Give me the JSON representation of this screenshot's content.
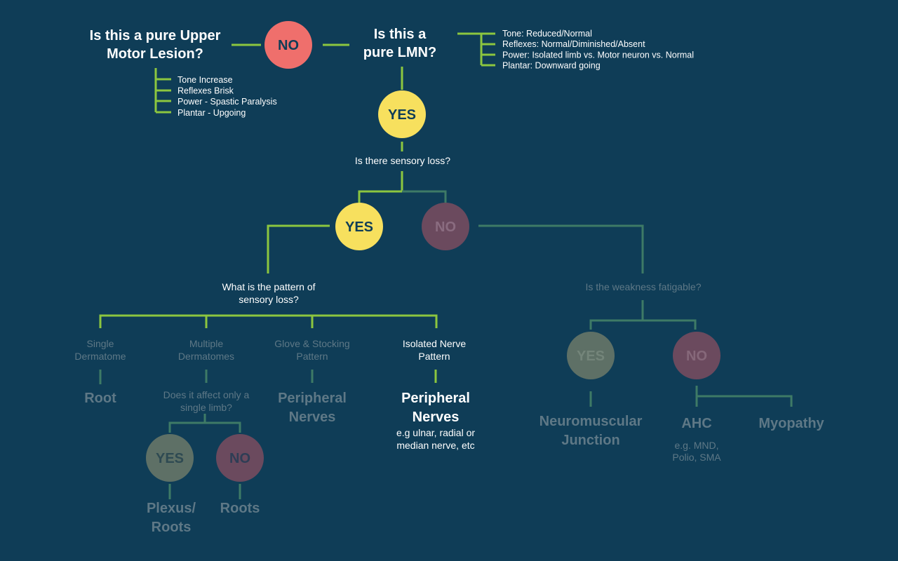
{
  "colors": {
    "background": "#0f3d57",
    "line_active": "#8cc63f",
    "line_dim": "#3e7a66",
    "no_red": "#ef6f6c",
    "yes_yellow": "#f7e05e",
    "no_dim": "#6b4a5e",
    "yes_dim": "#5e7066"
  },
  "top": {
    "umn_question": [
      "Is this a pure Upper",
      "Motor Lesion?"
    ],
    "umn_no": "NO",
    "lmn_question": [
      "Is this a",
      "pure LMN?"
    ],
    "umn_features": [
      "Tone Increase",
      "Reflexes Brisk",
      "Power - Spastic Paralysis",
      "Plantar - Upgoing"
    ],
    "lmn_features": [
      "Tone: Reduced/Normal",
      "Reflexes: Normal/Diminished/Absent",
      "Power: Isolated limb vs. Motor neuron vs. Normal",
      "Plantar: Downward going"
    ],
    "lmn_yes": "YES"
  },
  "sensory": {
    "question": "Is there sensory loss?",
    "yes": "YES",
    "no": "NO"
  },
  "pattern": {
    "question": [
      "What is the pattern of",
      "sensory loss?"
    ],
    "options": [
      {
        "label": [
          "Single",
          "Dermatome"
        ],
        "result": [
          "Root"
        ]
      },
      {
        "label": [
          "Multiple",
          "Dermatomes"
        ],
        "sub_question": [
          "Does it affect only a",
          "single limb?"
        ]
      },
      {
        "label": [
          "Glove & Stocking",
          "Pattern"
        ],
        "result": [
          "Peripheral",
          "Nerves"
        ]
      },
      {
        "label": [
          "Isolated Nerve",
          "Pattern"
        ],
        "result": [
          "Peripheral",
          "Nerves"
        ],
        "note": [
          "e.g ulnar, radial or",
          "median nerve, etc"
        ]
      }
    ],
    "single_limb_yes": "YES",
    "single_limb_no": "NO",
    "single_limb_yes_result": [
      "Plexus/",
      "Roots"
    ],
    "single_limb_no_result": [
      "Roots"
    ]
  },
  "fatigue": {
    "question": "Is the weakness fatigable?",
    "yes": "YES",
    "no": "NO",
    "yes_result": [
      "Neuromuscular",
      "Junction"
    ],
    "ahc": "AHC",
    "ahc_note": [
      "e.g. MND,",
      "Polio, SMA"
    ],
    "myopathy": "Myopathy"
  }
}
